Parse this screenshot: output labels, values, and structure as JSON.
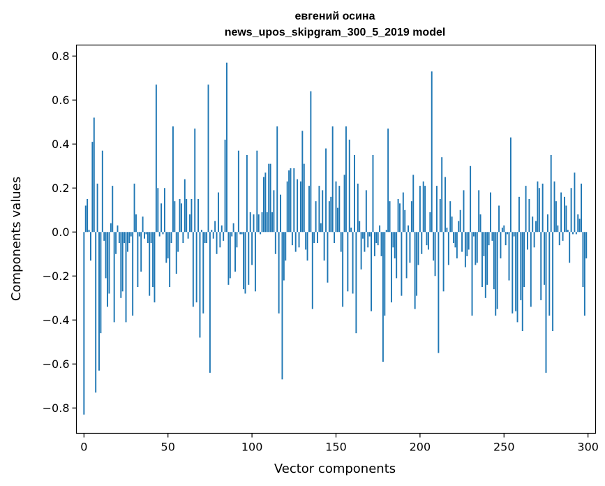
{
  "chart_data": {
    "type": "bar",
    "title": "евгений осина",
    "subtitle": "news_upos_skipgram_300_5_2019 model",
    "xlabel": "Vector components",
    "ylabel": "Components values",
    "xlim": [
      -4.5,
      304.5
    ],
    "ylim": [
      -0.915,
      0.85
    ],
    "xticks": [
      0,
      50,
      100,
      150,
      200,
      250,
      300
    ],
    "yticks": [
      -0.8,
      -0.6,
      -0.4,
      -0.2,
      0.0,
      0.2,
      0.4,
      0.6,
      0.8
    ],
    "ytick_labels": [
      "−0.8",
      "−0.6",
      "−0.4",
      "−0.2",
      "0.0",
      "0.2",
      "0.4",
      "0.6",
      "0.8"
    ],
    "grid": false,
    "bar_color": "#1f77b4",
    "values": [
      -0.83,
      0.12,
      0.15,
      0.01,
      -0.13,
      0.41,
      0.52,
      -0.73,
      0.22,
      -0.63,
      -0.46,
      0.37,
      -0.04,
      -0.21,
      -0.34,
      -0.28,
      0.04,
      0.21,
      -0.41,
      -0.1,
      0.03,
      -0.05,
      -0.3,
      -0.27,
      -0.05,
      -0.41,
      -0.09,
      -0.05,
      -0.02,
      -0.38,
      0.22,
      0.08,
      -0.25,
      -0.02,
      -0.18,
      0.07,
      -0.03,
      -0.01,
      -0.05,
      -0.29,
      -0.05,
      -0.25,
      -0.32,
      0.67,
      0.2,
      -0.02,
      0.13,
      -0.01,
      0.2,
      -0.14,
      -0.12,
      -0.25,
      -0.05,
      0.48,
      0.14,
      -0.19,
      -0.09,
      0.15,
      0.13,
      -0.05,
      0.24,
      0.15,
      -0.03,
      0.08,
      0.15,
      -0.34,
      0.47,
      -0.32,
      0.15,
      -0.48,
      0.01,
      -0.37,
      -0.05,
      -0.05,
      0.67,
      -0.64,
      0.01,
      -0.03,
      0.05,
      -0.1,
      0.18,
      -0.07,
      0.03,
      -0.04,
      0.42,
      0.77,
      -0.24,
      -0.21,
      -0.02,
      0.04,
      -0.18,
      -0.07,
      0.37,
      -0.01,
      -0.01,
      -0.26,
      -0.28,
      0.35,
      -0.24,
      0.09,
      -0.15,
      0.08,
      -0.27,
      0.37,
      0.08,
      -0.01,
      0.09,
      0.25,
      0.27,
      0.09,
      0.31,
      0.31,
      0.09,
      0.19,
      -0.1,
      0.48,
      -0.37,
      0.17,
      -0.67,
      -0.22,
      -0.13,
      0.23,
      0.28,
      0.29,
      -0.06,
      0.29,
      -0.09,
      0.24,
      -0.07,
      0.23,
      0.46,
      0.31,
      -0.08,
      -0.13,
      0.21,
      0.64,
      -0.35,
      -0.05,
      0.14,
      -0.05,
      0.21,
      0.04,
      0.19,
      -0.13,
      0.38,
      -0.23,
      0.14,
      0.16,
      0.48,
      -0.05,
      0.23,
      0.11,
      0.21,
      -0.09,
      -0.34,
      0.26,
      0.48,
      -0.27,
      0.42,
      0.02,
      -0.28,
      0.35,
      -0.46,
      0.22,
      0.05,
      -0.17,
      -0.03,
      -0.09,
      0.19,
      -0.07,
      -0.02,
      -0.36,
      0.35,
      -0.11,
      -0.05,
      -0.06,
      0.03,
      -0.11,
      -0.59,
      -0.38,
      0.01,
      0.47,
      0.14,
      -0.32,
      -0.07,
      -0.12,
      -0.21,
      0.15,
      0.13,
      -0.29,
      0.18,
      0.1,
      -0.21,
      0.03,
      -0.14,
      0.14,
      0.26,
      -0.35,
      -0.29,
      -0.15,
      0.21,
      -0.1,
      0.23,
      0.21,
      -0.06,
      -0.08,
      0.09,
      0.73,
      -0.13,
      -0.2,
      0.21,
      -0.55,
      0.15,
      0.34,
      -0.27,
      0.25,
      0.02,
      -0.15,
      0.14,
      0.07,
      -0.05,
      -0.07,
      -0.12,
      0.05,
      0.1,
      -0.09,
      0.19,
      -0.16,
      -0.11,
      -0.08,
      0.3,
      -0.38,
      -0.02,
      -0.15,
      -0.14,
      0.19,
      0.08,
      -0.25,
      -0.11,
      -0.3,
      -0.24,
      -0.06,
      0.18,
      -0.04,
      -0.26,
      -0.38,
      -0.35,
      0.12,
      -0.12,
      0.02,
      0.03,
      -0.06,
      -0.01,
      -0.22,
      0.43,
      -0.37,
      -0.02,
      -0.36,
      -0.41,
      0.16,
      -0.31,
      -0.45,
      -0.25,
      0.21,
      -0.08,
      0.15,
      -0.34,
      0.07,
      -0.07,
      0.05,
      0.23,
      0.2,
      -0.31,
      0.22,
      -0.24,
      -0.64,
      0.08,
      -0.38,
      0.35,
      -0.45,
      0.23,
      0.14,
      0.03,
      -0.06,
      0.18,
      -0.04,
      0.16,
      0.12,
      0.01,
      -0.14,
      0.2,
      -0.01,
      0.27,
      -0.01,
      0.08,
      0.06,
      0.22,
      -0.25,
      -0.38,
      -0.12
    ]
  }
}
